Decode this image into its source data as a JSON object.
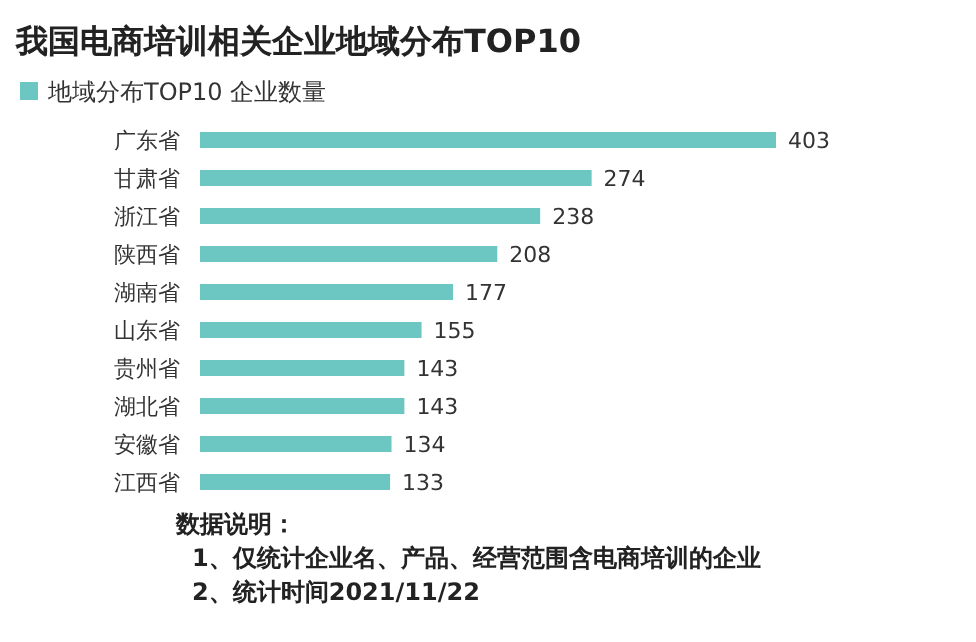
{
  "chart_data": {
    "type": "bar",
    "orientation": "horizontal",
    "title": "我国电商培训相关企业地域分布TOP10",
    "categories": [
      "广东省",
      "甘肃省",
      "浙江省",
      "陕西省",
      "湖南省",
      "山东省",
      "贵州省",
      "湖北省",
      "安徽省",
      "江西省"
    ],
    "series": [
      {
        "name": "地域分布TOP10 企业数量",
        "color": "#6cc6c2",
        "values": [
          403,
          274,
          238,
          208,
          177,
          155,
          143,
          143,
          134,
          133
        ]
      }
    ],
    "data_labels": true,
    "legend": "top left",
    "annotations": [
      "数据说明：",
      "1、仅统计企业名、产品、经营范围含电商培训的企业",
      "2、统计时间2021/11/22"
    ]
  }
}
